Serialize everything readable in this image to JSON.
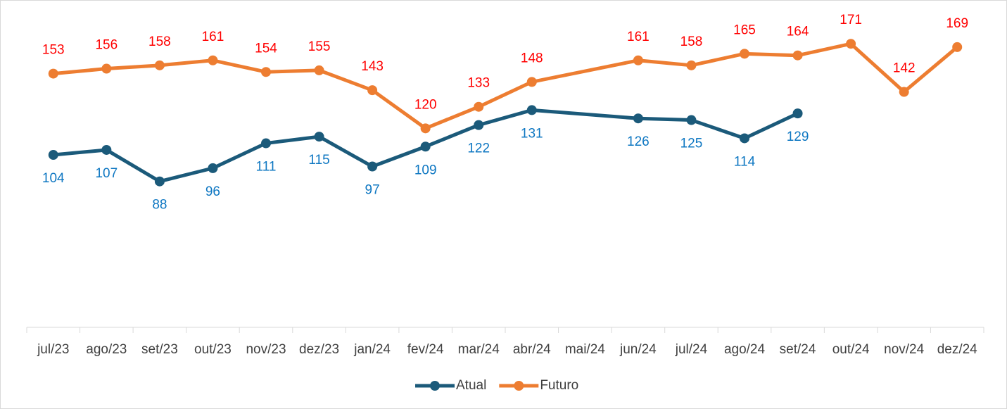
{
  "chart_data": {
    "type": "line",
    "categories": [
      "jul/23",
      "ago/23",
      "set/23",
      "out/23",
      "nov/23",
      "dez/23",
      "jan/24",
      "fev/24",
      "mar/24",
      "abr/24",
      "mai/24",
      "jun/24",
      "jul/24",
      "ago/24",
      "set/24",
      "out/24",
      "nov/24",
      "dez/24"
    ],
    "series": [
      {
        "name": "Atual",
        "color": "#1b5a7a",
        "label_color": "#0e77c2",
        "label_position": "below",
        "values": [
          104,
          107,
          88,
          96,
          111,
          115,
          97,
          109,
          122,
          131,
          null,
          126,
          125,
          114,
          129,
          null,
          null,
          null
        ]
      },
      {
        "name": "Futuro",
        "color": "#ed7d31",
        "label_color": "#ff0000",
        "label_position": "above",
        "values": [
          153,
          156,
          158,
          161,
          154,
          155,
          143,
          120,
          133,
          148,
          null,
          161,
          158,
          165,
          164,
          171,
          142,
          169
        ]
      }
    ],
    "ylim": [
      0,
      180
    ],
    "span_gaps": true,
    "legend": "bottom"
  }
}
